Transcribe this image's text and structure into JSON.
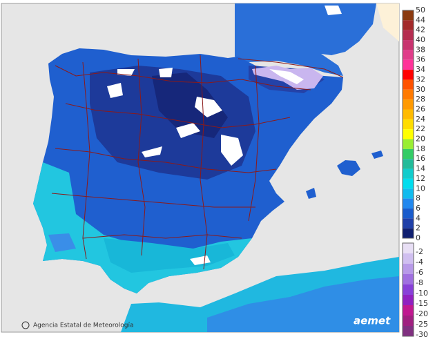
{
  "map": {
    "credit": "Agencia Estatal de Meteorología",
    "logo": "aemet",
    "legend": {
      "positive": [
        {
          "label": "50",
          "color": "#8b3a0f"
        },
        {
          "label": "44",
          "color": "#a32a2a"
        },
        {
          "label": "42",
          "color": "#b52d50"
        },
        {
          "label": "40",
          "color": "#c8336f"
        },
        {
          "label": "38",
          "color": "#e03d8a"
        },
        {
          "label": "36",
          "color": "#ff3399"
        },
        {
          "label": "34",
          "color": "#ff0000"
        },
        {
          "label": "32",
          "color": "#ff5200"
        },
        {
          "label": "30",
          "color": "#ff7a00"
        },
        {
          "label": "28",
          "color": "#ff9a00"
        },
        {
          "label": "26",
          "color": "#ffbb00"
        },
        {
          "label": "24",
          "color": "#ffdd00"
        },
        {
          "label": "22",
          "color": "#ffff00"
        },
        {
          "label": "20",
          "color": "#99ee33"
        },
        {
          "label": "18",
          "color": "#33cc66"
        },
        {
          "label": "16",
          "color": "#22bb99"
        },
        {
          "label": "14",
          "color": "#11cccc"
        },
        {
          "label": "12",
          "color": "#00ddee"
        },
        {
          "label": "10",
          "color": "#11bbee"
        },
        {
          "label": "8",
          "color": "#2288ee"
        },
        {
          "label": "6",
          "color": "#1a5ccc"
        },
        {
          "label": "4",
          "color": "#1f3fa8"
        },
        {
          "label": "2",
          "color": "#101f70"
        },
        {
          "label": "0",
          "color": null
        }
      ],
      "negative": [
        {
          "label": "-2",
          "color": "#e8dff5"
        },
        {
          "label": "-4",
          "color": "#d0bff0"
        },
        {
          "label": "-6",
          "color": "#b89ae8"
        },
        {
          "label": "-8",
          "color": "#a070e0"
        },
        {
          "label": "-10",
          "color": "#8840d8"
        },
        {
          "label": "-15",
          "color": "#9020c0"
        },
        {
          "label": "-20",
          "color": "#c01890"
        },
        {
          "label": "-25",
          "color": "#a02080"
        },
        {
          "label": "-30",
          "color": "#803080"
        }
      ]
    }
  }
}
